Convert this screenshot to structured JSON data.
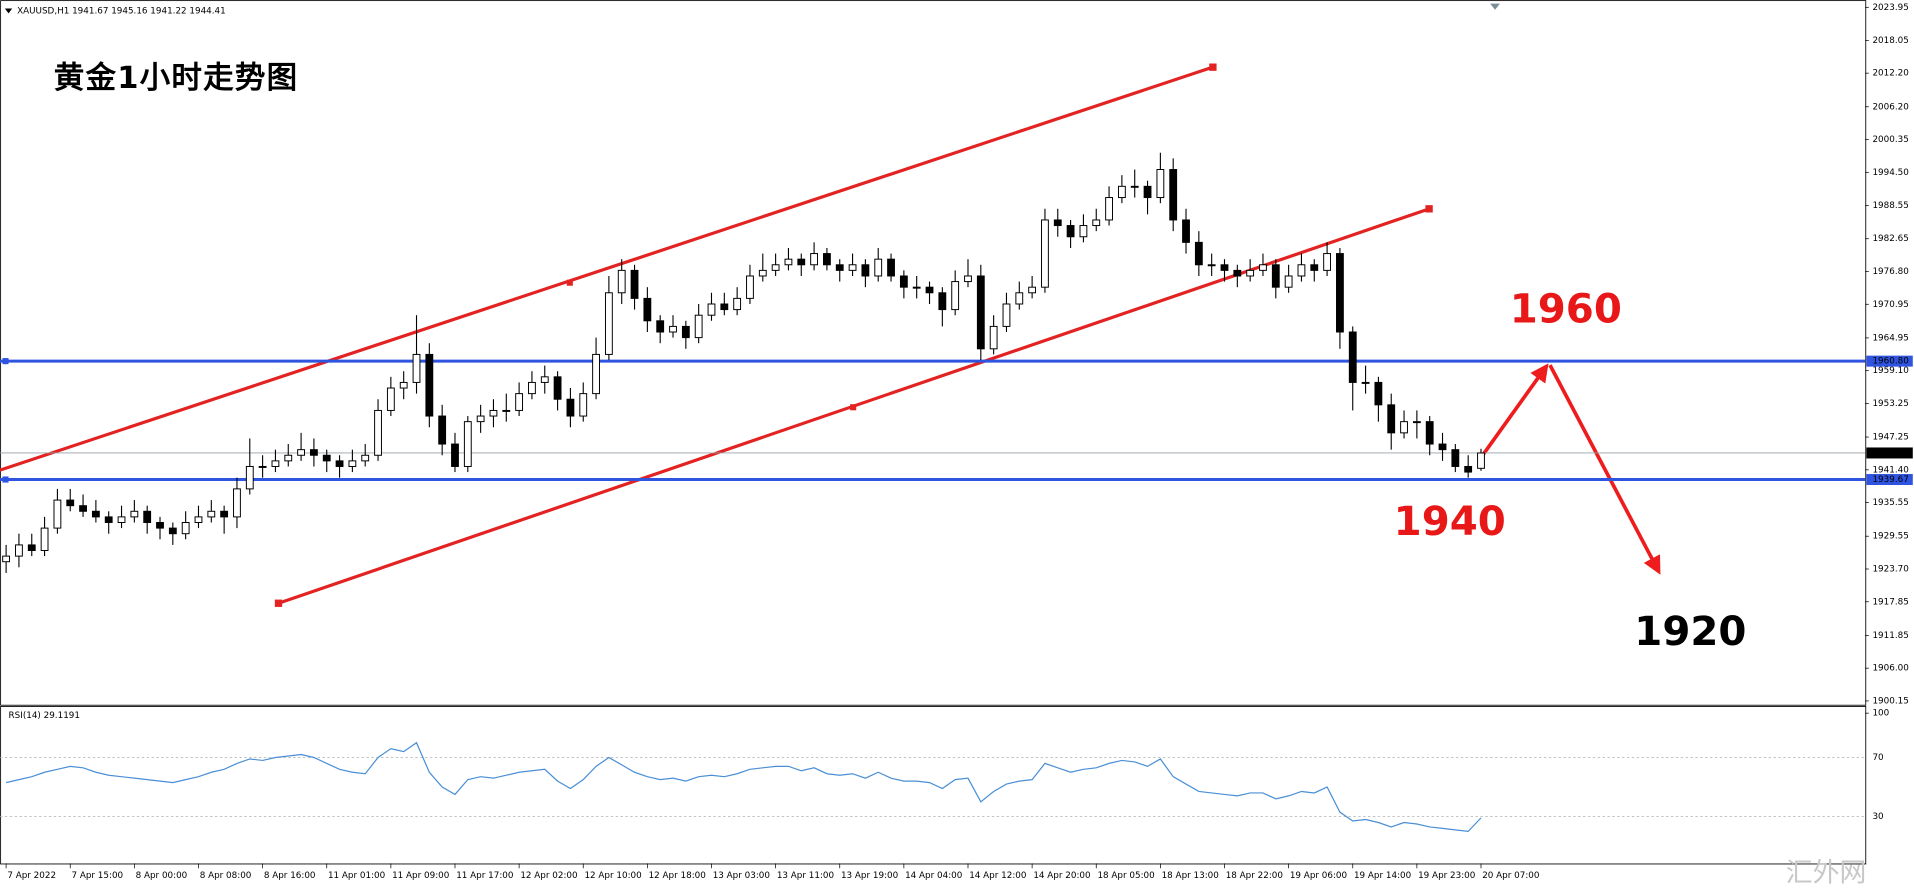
{
  "chart_data": [
    {
      "type": "candlestick",
      "header": "XAUUSD,H1  1941.67 1945.16 1941.22 1944.41",
      "title": "黄金1小时走势图",
      "annotations": [
        "1960",
        "1940",
        "1920"
      ],
      "x_labels": [
        "7 Apr 2022",
        "7 Apr 15:00",
        "8 Apr 00:00",
        "8 Apr 08:00",
        "8 Apr 16:00",
        "11 Apr 01:00",
        "11 Apr 09:00",
        "11 Apr 17:00",
        "12 Apr 02:00",
        "12 Apr 10:00",
        "12 Apr 18:00",
        "13 Apr 03:00",
        "13 Apr 11:00",
        "13 Apr 19:00",
        "14 Apr 04:00",
        "14 Apr 12:00",
        "14 Apr 20:00",
        "18 Apr 05:00",
        "18 Apr 13:00",
        "18 Apr 22:00",
        "19 Apr 06:00",
        "19 Apr 14:00",
        "19 Apr 23:00",
        "20 Apr 07:00"
      ],
      "ylim": [
        1900.15,
        2023.95
      ],
      "yticks": [
        1900.15,
        {
          "value": 1906.0,
          "label": "1906.00"
        },
        1911.85,
        1917.85,
        {
          "value": 1923.7,
          "label": "1923.70"
        },
        1929.55,
        1935.55,
        {
          "value": 1941.4,
          "label": "1941.40"
        },
        1947.25,
        1953.25,
        {
          "value": 1959.1,
          "label": "1959.10"
        },
        1964.95,
        1970.95,
        {
          "value": 1976.8,
          "label": "1976.80"
        },
        1982.65,
        1988.55,
        {
          "value": 1994.5,
          "label": "1994.50"
        },
        2000.35,
        {
          "value": 2006.2,
          "label": "2006.20"
        },
        {
          "value": 2012.2,
          "label": "2012.20"
        },
        2018.05,
        2023.95
      ],
      "hlines": [
        {
          "value": 1960.8,
          "label": "1960.80",
          "color": "#2f54e0"
        },
        {
          "value": 1939.67,
          "label": "1939.67",
          "color": "#2f54e0"
        }
      ],
      "last_price": 1944.41,
      "up_color": "#ffffff",
      "down_color": "#000000",
      "candles": [
        [
          1925,
          1928,
          1923,
          1926
        ],
        [
          1926,
          1930,
          1924,
          1928
        ],
        [
          1928,
          1930,
          1926,
          1927
        ],
        [
          1927,
          1933,
          1926,
          1931
        ],
        [
          1931,
          1938,
          1930,
          1936
        ],
        [
          1936,
          1938,
          1934,
          1935
        ],
        [
          1935,
          1937,
          1933,
          1934
        ],
        [
          1934,
          1936,
          1932,
          1933
        ],
        [
          1933,
          1934,
          1930,
          1932
        ],
        [
          1932,
          1935,
          1931,
          1933
        ],
        [
          1933,
          1936,
          1932,
          1934
        ],
        [
          1934,
          1935,
          1930,
          1932
        ],
        [
          1932,
          1933,
          1929,
          1931
        ],
        [
          1931,
          1932,
          1928,
          1930
        ],
        [
          1930,
          1934,
          1929,
          1932
        ],
        [
          1932,
          1935,
          1931,
          1933
        ],
        [
          1933,
          1936,
          1932,
          1934
        ],
        [
          1934,
          1935,
          1930,
          1933
        ],
        [
          1933,
          1940,
          1931,
          1938
        ],
        [
          1938,
          1947,
          1937,
          1942
        ],
        [
          1942,
          1944,
          1940,
          1942
        ],
        [
          1942,
          1945,
          1941,
          1943
        ],
        [
          1943,
          1946,
          1942,
          1944
        ],
        [
          1944,
          1948,
          1943,
          1945
        ],
        [
          1945,
          1947,
          1942,
          1944
        ],
        [
          1944,
          1945,
          1941,
          1943
        ],
        [
          1943,
          1944,
          1940,
          1942
        ],
        [
          1942,
          1945,
          1941,
          1943
        ],
        [
          1943,
          1946,
          1942,
          1944
        ],
        [
          1944,
          1954,
          1943,
          1952
        ],
        [
          1952,
          1958,
          1951,
          1956
        ],
        [
          1956,
          1959,
          1954,
          1957
        ],
        [
          1957,
          1969,
          1955,
          1962
        ],
        [
          1962,
          1964,
          1949,
          1951
        ],
        [
          1951,
          1953,
          1944,
          1946
        ],
        [
          1946,
          1948,
          1941,
          1942
        ],
        [
          1942,
          1951,
          1941,
          1950
        ],
        [
          1950,
          1953,
          1948,
          1951
        ],
        [
          1951,
          1954,
          1949,
          1952
        ],
        [
          1952,
          1955,
          1950,
          1952
        ],
        [
          1952,
          1957,
          1951,
          1955
        ],
        [
          1955,
          1959,
          1954,
          1957
        ],
        [
          1957,
          1960,
          1955,
          1958
        ],
        [
          1958,
          1959,
          1952,
          1954
        ],
        [
          1954,
          1956,
          1949,
          1951
        ],
        [
          1951,
          1957,
          1950,
          1955
        ],
        [
          1955,
          1965,
          1954,
          1962
        ],
        [
          1962,
          1976,
          1961,
          1973
        ],
        [
          1973,
          1979,
          1971,
          1977
        ],
        [
          1977,
          1978,
          1970,
          1972
        ],
        [
          1972,
          1974,
          1966,
          1968
        ],
        [
          1968,
          1969,
          1964,
          1966
        ],
        [
          1966,
          1969,
          1965,
          1967
        ],
        [
          1967,
          1968,
          1963,
          1965
        ],
        [
          1965,
          1971,
          1964,
          1969
        ],
        [
          1969,
          1973,
          1968,
          1971
        ],
        [
          1971,
          1973,
          1969,
          1970
        ],
        [
          1970,
          1974,
          1969,
          1972
        ],
        [
          1972,
          1978,
          1971,
          1976
        ],
        [
          1976,
          1980,
          1975,
          1977
        ],
        [
          1977,
          1980,
          1976,
          1978
        ],
        [
          1978,
          1981,
          1977,
          1979
        ],
        [
          1979,
          1980,
          1976,
          1978
        ],
        [
          1978,
          1982,
          1977,
          1980
        ],
        [
          1980,
          1981,
          1977,
          1978
        ],
        [
          1978,
          1979,
          1975,
          1977
        ],
        [
          1977,
          1980,
          1976,
          1978
        ],
        [
          1978,
          1979,
          1974,
          1976
        ],
        [
          1976,
          1981,
          1975,
          1979
        ],
        [
          1979,
          1980,
          1975,
          1976
        ],
        [
          1976,
          1977,
          1972,
          1974
        ],
        [
          1974,
          1976,
          1972,
          1974
        ],
        [
          1974,
          1975,
          1971,
          1973
        ],
        [
          1973,
          1974,
          1967,
          1970
        ],
        [
          1970,
          1977,
          1969,
          1975
        ],
        [
          1975,
          1979,
          1974,
          1976
        ],
        [
          1976,
          1978,
          1961,
          1963
        ],
        [
          1963,
          1969,
          1962,
          1967
        ],
        [
          1967,
          1973,
          1966,
          1971
        ],
        [
          1971,
          1975,
          1970,
          1973
        ],
        [
          1973,
          1976,
          1972,
          1974
        ],
        [
          1974,
          1988,
          1973,
          1986
        ],
        [
          1986,
          1988,
          1983,
          1985
        ],
        [
          1985,
          1986,
          1981,
          1983
        ],
        [
          1983,
          1987,
          1982,
          1985
        ],
        [
          1985,
          1988,
          1984,
          1986
        ],
        [
          1986,
          1992,
          1985,
          1990
        ],
        [
          1990,
          1994,
          1989,
          1992
        ],
        [
          1992,
          1995,
          1990,
          1992
        ],
        [
          1992,
          1993,
          1987,
          1990
        ],
        [
          1990,
          1998,
          1989,
          1995
        ],
        [
          1995,
          1997,
          1984,
          1986
        ],
        [
          1986,
          1988,
          1980,
          1982
        ],
        [
          1982,
          1984,
          1976,
          1978
        ],
        [
          1978,
          1980,
          1976,
          1978
        ],
        [
          1978,
          1979,
          1975,
          1977
        ],
        [
          1977,
          1978,
          1974,
          1976
        ],
        [
          1976,
          1979,
          1975,
          1977
        ],
        [
          1977,
          1980,
          1976,
          1978
        ],
        [
          1978,
          1979,
          1972,
          1974
        ],
        [
          1974,
          1978,
          1973,
          1976
        ],
        [
          1976,
          1980,
          1975,
          1978
        ],
        [
          1978,
          1979,
          1975,
          1977
        ],
        [
          1977,
          1982,
          1976,
          1980
        ],
        [
          1980,
          1981,
          1963,
          1966
        ],
        [
          1966,
          1967,
          1952,
          1957
        ],
        [
          1957,
          1960,
          1955,
          1957
        ],
        [
          1957,
          1958,
          1950,
          1953
        ],
        [
          1953,
          1955,
          1945,
          1948
        ],
        [
          1948,
          1952,
          1947,
          1950
        ],
        [
          1950,
          1952,
          1947,
          1950
        ],
        [
          1950,
          1951,
          1944,
          1946
        ],
        [
          1946,
          1948,
          1943,
          1945
        ],
        [
          1945,
          1946,
          1941,
          1942
        ],
        [
          1942,
          1944,
          1940,
          1941
        ],
        [
          1941.67,
          1945.16,
          1941.22,
          1944.41
        ]
      ]
    },
    {
      "type": "line",
      "title": "RSI(14) 29.1191",
      "color": "#4a8fd6",
      "ylim": [
        0,
        100
      ],
      "yticks": [
        30,
        70,
        100
      ],
      "values": [
        53,
        55,
        57,
        60,
        62,
        64,
        63,
        60,
        58,
        57,
        56,
        55,
        54,
        53,
        55,
        57,
        60,
        62,
        66,
        69,
        68,
        70,
        71,
        72,
        70,
        66,
        62,
        60,
        59,
        70,
        76,
        74,
        80,
        60,
        50,
        45,
        55,
        57,
        56,
        58,
        60,
        61,
        62,
        54,
        49,
        55,
        64,
        70,
        65,
        60,
        57,
        55,
        56,
        54,
        57,
        58,
        57,
        59,
        62,
        63,
        64,
        64,
        61,
        63,
        59,
        58,
        59,
        56,
        60,
        56,
        54,
        54,
        53,
        49,
        55,
        56,
        40,
        47,
        52,
        54,
        55,
        66,
        63,
        60,
        62,
        63,
        66,
        68,
        67,
        64,
        69,
        57,
        52,
        47,
        46,
        45,
        44,
        46,
        46,
        42,
        44,
        47,
        46,
        50,
        33,
        27,
        28,
        26,
        23,
        26,
        25,
        23,
        22,
        21,
        20,
        29.1191
      ]
    }
  ],
  "watermark": "汇外网"
}
